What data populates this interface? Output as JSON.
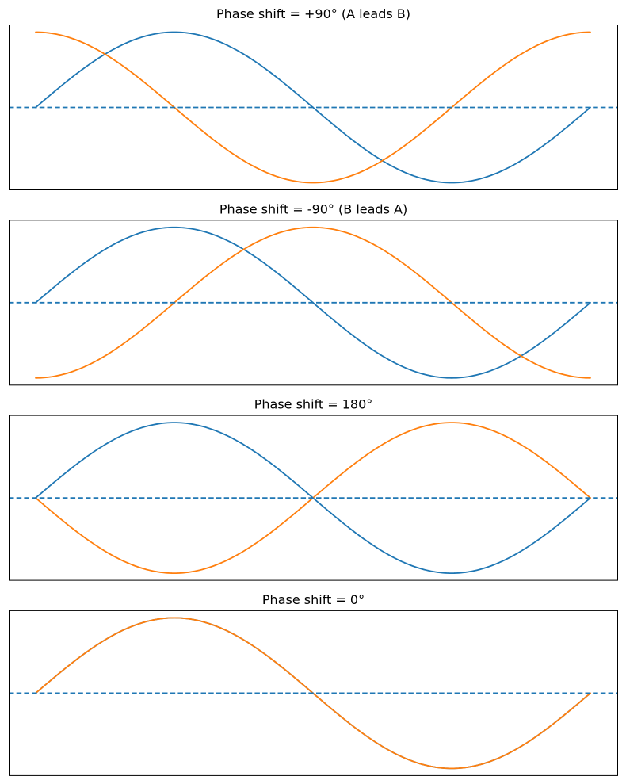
{
  "chart_data": [
    {
      "type": "line",
      "title": "Phase shift = +90° (A leads B)",
      "phase_shift_deg": 90,
      "x_unit": "period",
      "x_range": [
        0,
        1
      ],
      "ylim": [
        -1.1,
        1.1
      ],
      "grid": false,
      "series": [
        {
          "function": "sin(2πx)",
          "amplitude": 1,
          "color": "#1f77b4"
        },
        {
          "function": "cos(2πx)",
          "amplitude": 1,
          "color": "#ff7f0e"
        }
      ],
      "reference_line": {
        "y": 0,
        "style": "dashed",
        "color": "#1f77b4"
      }
    },
    {
      "type": "line",
      "title": "Phase shift = -90° (B leads A)",
      "phase_shift_deg": -90,
      "x_unit": "period",
      "x_range": [
        0,
        1
      ],
      "ylim": [
        -1.1,
        1.1
      ],
      "grid": false,
      "series": [
        {
          "function": "sin(2πx)",
          "amplitude": 1,
          "color": "#1f77b4"
        },
        {
          "function": "-cos(2πx)",
          "amplitude": 1,
          "color": "#ff7f0e"
        }
      ],
      "reference_line": {
        "y": 0,
        "style": "dashed",
        "color": "#1f77b4"
      }
    },
    {
      "type": "line",
      "title": "Phase shift = 180°",
      "phase_shift_deg": 180,
      "x_unit": "period",
      "x_range": [
        0,
        1
      ],
      "ylim": [
        -1.1,
        1.1
      ],
      "grid": false,
      "series": [
        {
          "function": "sin(2πx)",
          "amplitude": 1,
          "color": "#1f77b4"
        },
        {
          "function": "-sin(2πx)",
          "amplitude": 1,
          "color": "#ff7f0e"
        }
      ],
      "reference_line": {
        "y": 0,
        "style": "dashed",
        "color": "#1f77b4"
      }
    },
    {
      "type": "line",
      "title": "Phase shift = 0°",
      "phase_shift_deg": 0,
      "x_unit": "period",
      "x_range": [
        0,
        1
      ],
      "ylim": [
        -1.1,
        1.1
      ],
      "grid": false,
      "series": [
        {
          "function": "sin(2πx)",
          "amplitude": 1,
          "color": "#1f77b4"
        },
        {
          "function": "sin(2πx)",
          "amplitude": 1,
          "color": "#ff7f0e"
        }
      ],
      "reference_line": {
        "y": 0,
        "style": "dashed",
        "color": "#1f77b4"
      }
    }
  ]
}
